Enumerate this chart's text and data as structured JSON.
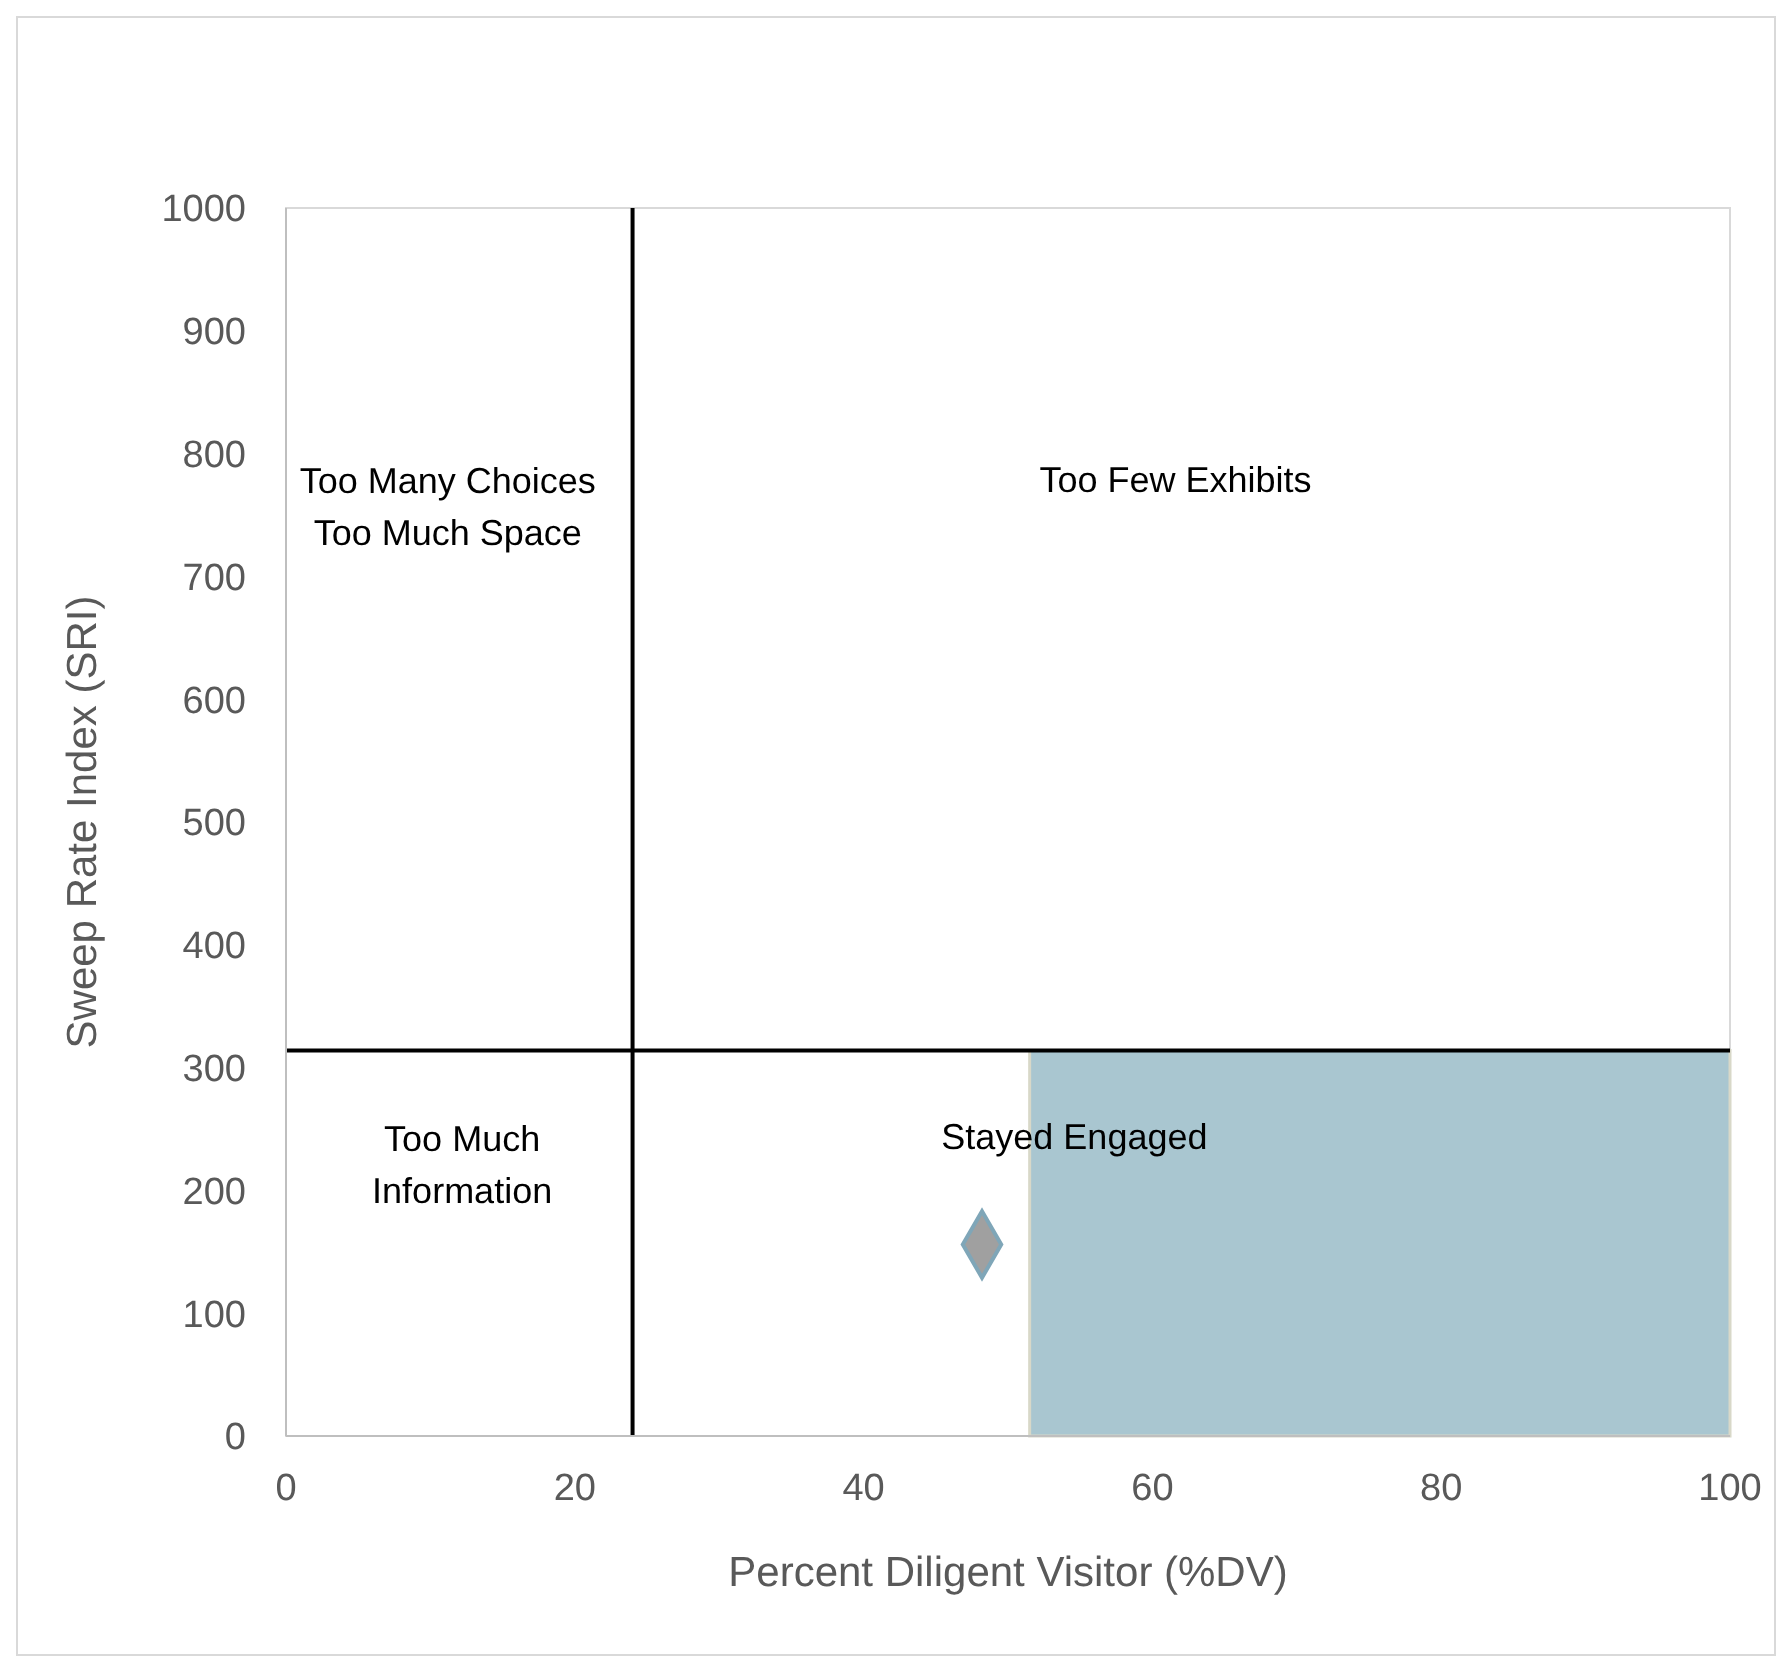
{
  "chart_data": {
    "type": "scatter",
    "xlabel": "Percent Diligent Visitor (%DV)",
    "ylabel": "Sweep Rate Index (SRI)",
    "xlim": [
      0,
      100
    ],
    "xticks": [
      0,
      20,
      40,
      60,
      80,
      100
    ],
    "ylim": [
      0,
      1000
    ],
    "yticks": [
      0,
      100,
      200,
      300,
      400,
      500,
      600,
      700,
      800,
      900,
      1000
    ],
    "grid": false,
    "series": [
      {
        "type": "area",
        "color": "#a9c6d0",
        "x": [
          51.5,
          100
        ],
        "values": [
          314,
          314
        ]
      },
      {
        "color": "#a0a0a0",
        "marker": "diamond",
        "x": [
          48.2
        ],
        "values": [
          156
        ]
      }
    ],
    "ref_lines": [
      {
        "axis": "x",
        "value": 24,
        "color": "#000000"
      },
      {
        "axis": "y",
        "value": 314,
        "color": "#000000"
      }
    ],
    "annotations": [
      "Too Many Choices\nToo Much Space",
      "Too Few Exhibits",
      "Too Much\nInformation",
      "Stayed Engaged"
    ]
  }
}
